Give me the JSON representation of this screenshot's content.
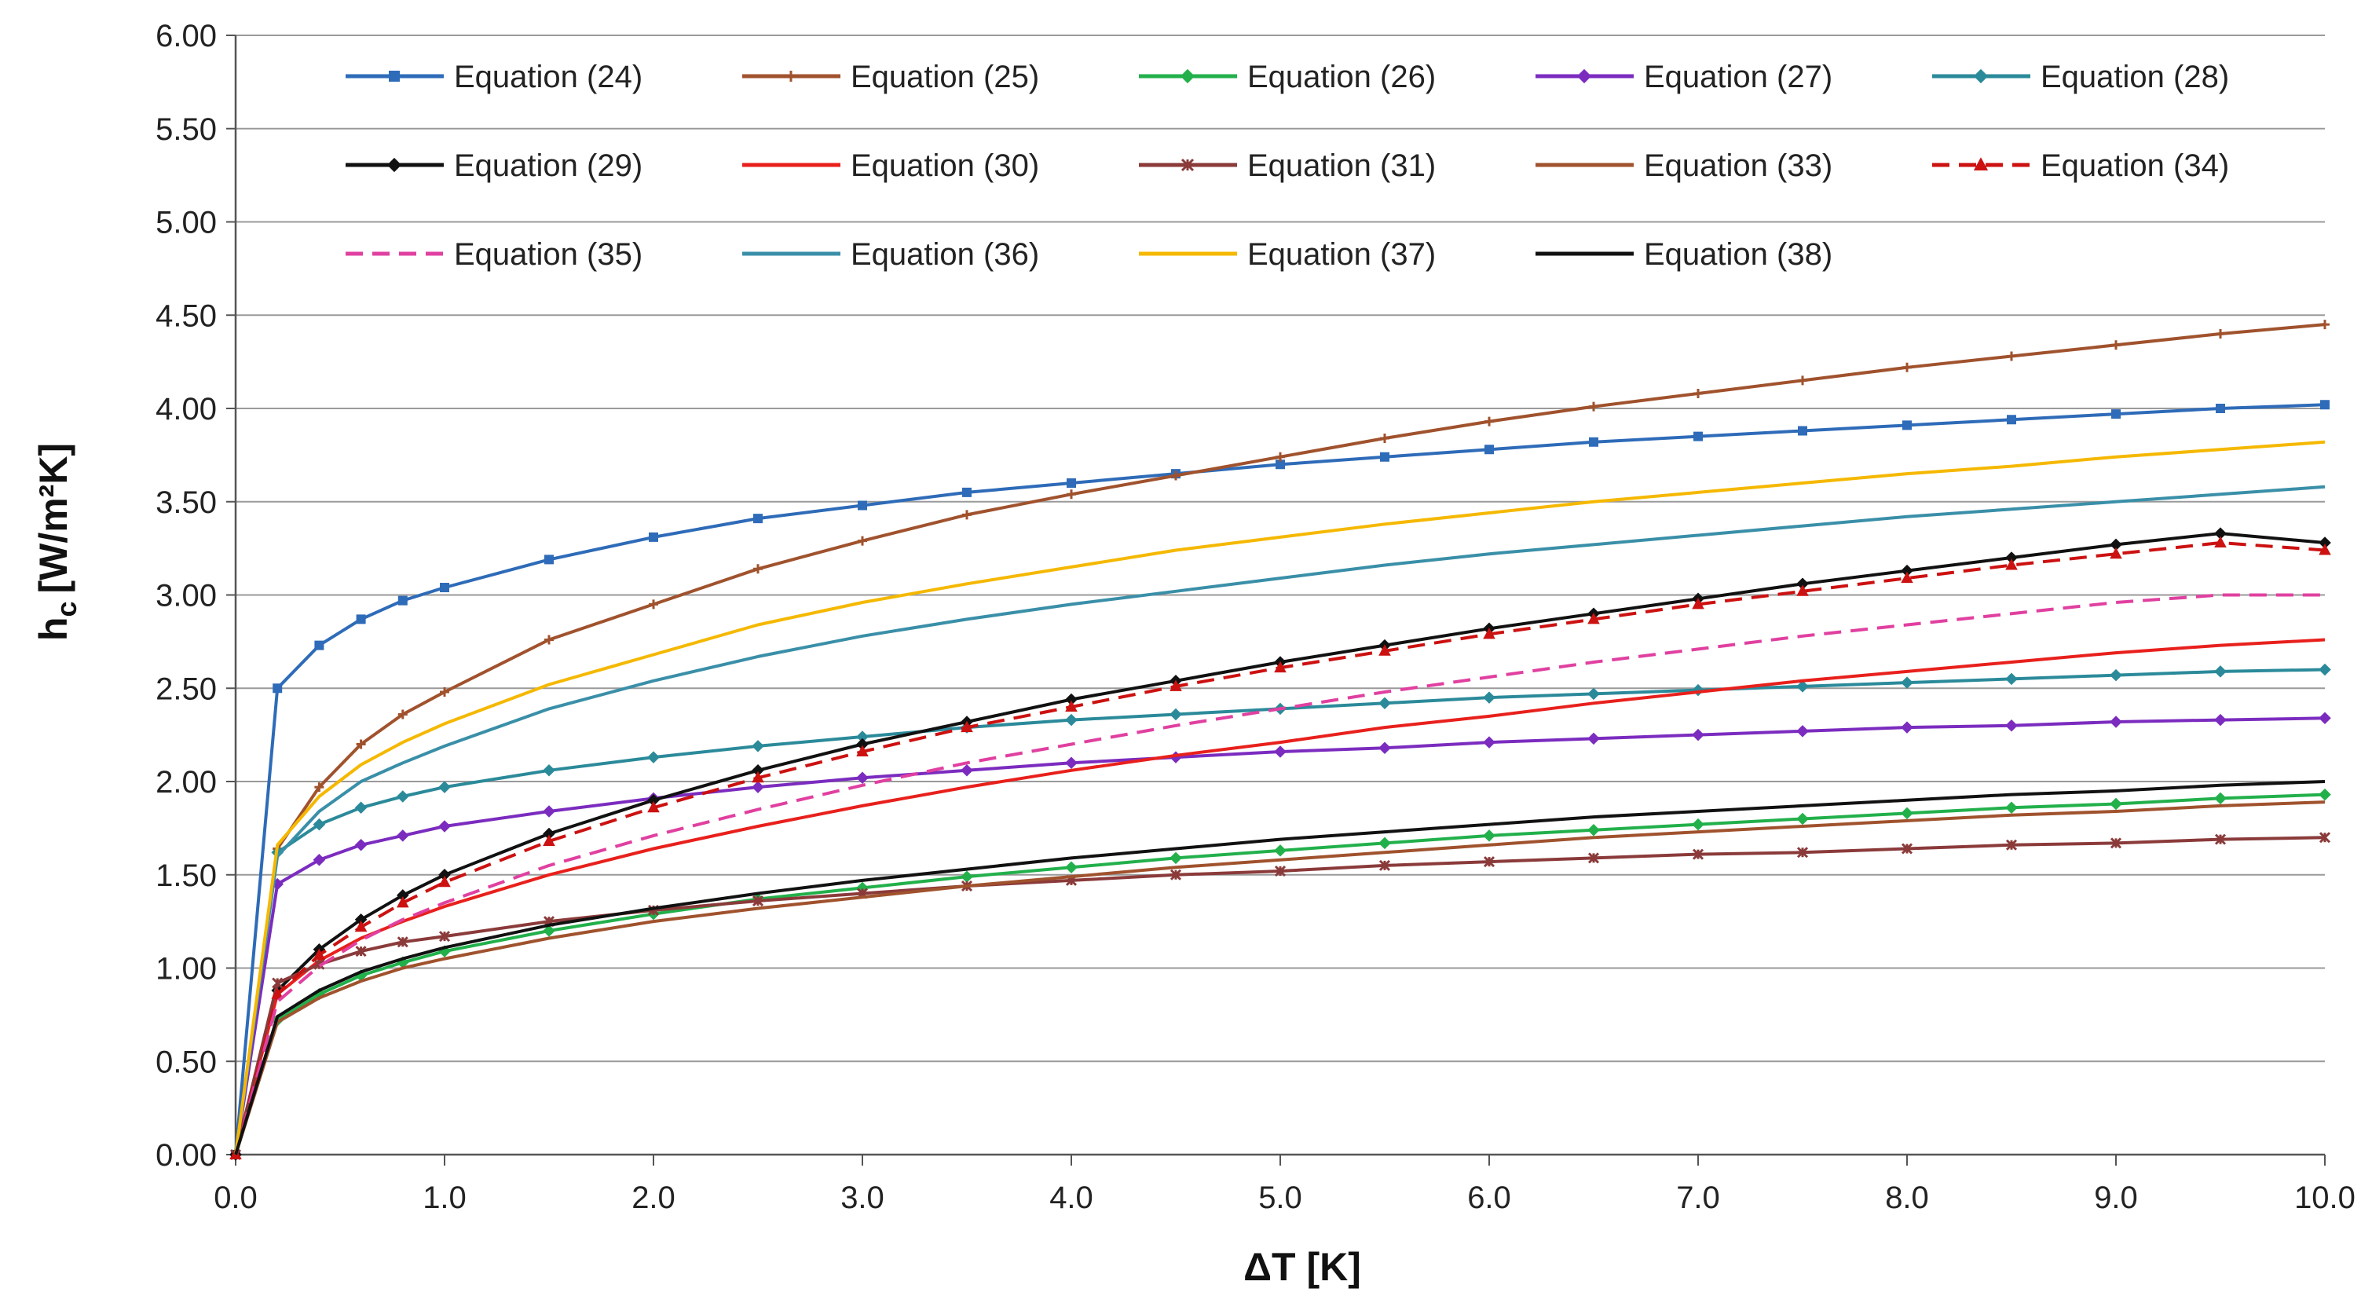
{
  "chart_data": {
    "type": "line",
    "title": "",
    "xlabel": "ΔT [K]",
    "ylabel": "h",
    "ylabel_sub": "c",
    "ylabel_unit": "[W/m²K]",
    "xlim": [
      0,
      10
    ],
    "ylim": [
      0,
      6
    ],
    "xticks": [
      0,
      1,
      2,
      3,
      4,
      5,
      6,
      7,
      8,
      9,
      10
    ],
    "xtick_labels": [
      "0.0",
      "1.0",
      "2.0",
      "3.0",
      "4.0",
      "5.0",
      "6.0",
      "7.0",
      "8.0",
      "9.0",
      "10.0"
    ],
    "yticks": [
      0,
      0.5,
      1,
      1.5,
      2,
      2.5,
      3,
      3.5,
      4,
      4.5,
      5,
      5.5,
      6
    ],
    "ytick_labels": [
      "0.00",
      "0.50",
      "1.00",
      "1.50",
      "2.00",
      "2.50",
      "3.00",
      "3.50",
      "4.00",
      "4.50",
      "5.00",
      "5.50",
      "6.00"
    ],
    "grid": "horizontal",
    "legend_position": "top",
    "x": [
      0,
      0.2,
      0.4,
      0.6,
      0.8,
      1,
      1.5,
      2,
      2.5,
      3,
      3.5,
      4,
      4.5,
      5,
      5.5,
      6,
      6.5,
      7,
      7.5,
      8,
      8.5,
      9,
      9.5,
      10
    ],
    "series": [
      {
        "name": "Equation (24)",
        "color": "#2e6bb8",
        "dash": "solid",
        "marker": "square",
        "values": [
          0,
          2.5,
          2.73,
          2.87,
          2.97,
          3.04,
          3.19,
          3.31,
          3.41,
          3.48,
          3.55,
          3.6,
          3.65,
          3.7,
          3.74,
          3.78,
          3.82,
          3.85,
          3.88,
          3.91,
          3.94,
          3.97,
          4.0,
          4.02
        ]
      },
      {
        "name": "Equation (25)",
        "color": "#a0522d",
        "dash": "solid",
        "marker": "plus",
        "values": [
          0,
          1.64,
          1.97,
          2.2,
          2.36,
          2.48,
          2.76,
          2.95,
          3.14,
          3.29,
          3.43,
          3.54,
          3.64,
          3.74,
          3.84,
          3.93,
          4.01,
          4.08,
          4.15,
          4.22,
          4.28,
          4.34,
          4.4,
          4.45
        ]
      },
      {
        "name": "Equation (26)",
        "color": "#22b04b",
        "dash": "solid",
        "marker": "diamond",
        "values": [
          0,
          0.72,
          0.86,
          0.96,
          1.03,
          1.09,
          1.2,
          1.29,
          1.37,
          1.43,
          1.49,
          1.54,
          1.59,
          1.63,
          1.67,
          1.71,
          1.74,
          1.77,
          1.8,
          1.83,
          1.86,
          1.88,
          1.91,
          1.93
        ]
      },
      {
        "name": "Equation (27)",
        "color": "#7b2cbf",
        "dash": "solid",
        "marker": "diamond",
        "values": [
          0,
          1.45,
          1.58,
          1.66,
          1.71,
          1.76,
          1.84,
          1.91,
          1.97,
          2.02,
          2.06,
          2.1,
          2.13,
          2.16,
          2.18,
          2.21,
          2.23,
          2.25,
          2.27,
          2.29,
          2.3,
          2.32,
          2.33,
          2.34
        ]
      },
      {
        "name": "Equation (28)",
        "color": "#2b8a9a",
        "dash": "solid",
        "marker": "diamond",
        "values": [
          0,
          1.62,
          1.77,
          1.86,
          1.92,
          1.97,
          2.06,
          2.13,
          2.19,
          2.24,
          2.29,
          2.33,
          2.36,
          2.39,
          2.42,
          2.45,
          2.47,
          2.49,
          2.51,
          2.53,
          2.55,
          2.57,
          2.59,
          2.6
        ]
      },
      {
        "name": "Equation (29)",
        "color": "#111111",
        "dash": "solid",
        "marker": "diamond",
        "values": [
          0,
          0.88,
          1.1,
          1.26,
          1.39,
          1.5,
          1.72,
          1.9,
          2.06,
          2.2,
          2.32,
          2.44,
          2.54,
          2.64,
          2.73,
          2.82,
          2.9,
          2.98,
          3.06,
          3.13,
          3.2,
          3.27,
          3.33,
          3.28
        ]
      },
      {
        "name": "Equation (30)",
        "color": "#e8201c",
        "dash": "solid",
        "marker": "none",
        "values": [
          0,
          0.86,
          1.04,
          1.16,
          1.25,
          1.33,
          1.5,
          1.64,
          1.76,
          1.87,
          1.97,
          2.06,
          2.14,
          2.21,
          2.29,
          2.35,
          2.42,
          2.48,
          2.54,
          2.59,
          2.64,
          2.69,
          2.73,
          2.76
        ]
      },
      {
        "name": "Equation (31)",
        "color": "#8b3a3a",
        "dash": "solid",
        "marker": "asterisk",
        "values": [
          0,
          0.92,
          1.02,
          1.09,
          1.14,
          1.17,
          1.25,
          1.31,
          1.36,
          1.4,
          1.44,
          1.47,
          1.5,
          1.52,
          1.55,
          1.57,
          1.59,
          1.61,
          1.62,
          1.64,
          1.66,
          1.67,
          1.69,
          1.7
        ]
      },
      {
        "name": "Equation (33)",
        "color": "#a0522d",
        "dash": "solid",
        "marker": "none",
        "values": [
          0,
          0.71,
          0.84,
          0.93,
          1.0,
          1.05,
          1.16,
          1.25,
          1.32,
          1.38,
          1.44,
          1.49,
          1.54,
          1.58,
          1.62,
          1.66,
          1.7,
          1.73,
          1.76,
          1.79,
          1.82,
          1.84,
          1.87,
          1.89
        ]
      },
      {
        "name": "Equation (34)",
        "color": "#cc1111",
        "dash": "dash",
        "marker": "triangle",
        "values": [
          0,
          0.86,
          1.07,
          1.22,
          1.35,
          1.46,
          1.68,
          1.86,
          2.02,
          2.16,
          2.29,
          2.4,
          2.51,
          2.61,
          2.7,
          2.79,
          2.87,
          2.95,
          3.02,
          3.09,
          3.16,
          3.22,
          3.28,
          3.24
        ]
      },
      {
        "name": "Equation (35)",
        "color": "#e040a0",
        "dash": "dash",
        "marker": "none",
        "values": [
          0,
          0.82,
          1.01,
          1.15,
          1.26,
          1.35,
          1.55,
          1.71,
          1.85,
          1.98,
          2.1,
          2.2,
          2.3,
          2.39,
          2.48,
          2.56,
          2.64,
          2.71,
          2.78,
          2.84,
          2.9,
          2.96,
          3.0,
          3.0
        ]
      },
      {
        "name": "Equation (36)",
        "color": "#3a8fa8",
        "dash": "solid",
        "marker": "none",
        "values": [
          0,
          1.6,
          1.84,
          2.0,
          2.1,
          2.19,
          2.39,
          2.54,
          2.67,
          2.78,
          2.87,
          2.95,
          3.02,
          3.09,
          3.16,
          3.22,
          3.27,
          3.32,
          3.37,
          3.42,
          3.46,
          3.5,
          3.54,
          3.58
        ]
      },
      {
        "name": "Equation (37)",
        "color": "#f5b800",
        "dash": "solid",
        "marker": "none",
        "values": [
          0,
          1.66,
          1.92,
          2.09,
          2.21,
          2.31,
          2.52,
          2.68,
          2.84,
          2.96,
          3.06,
          3.15,
          3.24,
          3.31,
          3.38,
          3.44,
          3.5,
          3.55,
          3.6,
          3.65,
          3.69,
          3.74,
          3.78,
          3.82
        ]
      },
      {
        "name": "Equation (38)",
        "color": "#111111",
        "dash": "solid",
        "marker": "none",
        "values": [
          0,
          0.74,
          0.88,
          0.98,
          1.05,
          1.11,
          1.23,
          1.32,
          1.4,
          1.47,
          1.53,
          1.59,
          1.64,
          1.69,
          1.73,
          1.77,
          1.81,
          1.84,
          1.87,
          1.9,
          1.93,
          1.95,
          1.98,
          2.0
        ]
      }
    ]
  }
}
